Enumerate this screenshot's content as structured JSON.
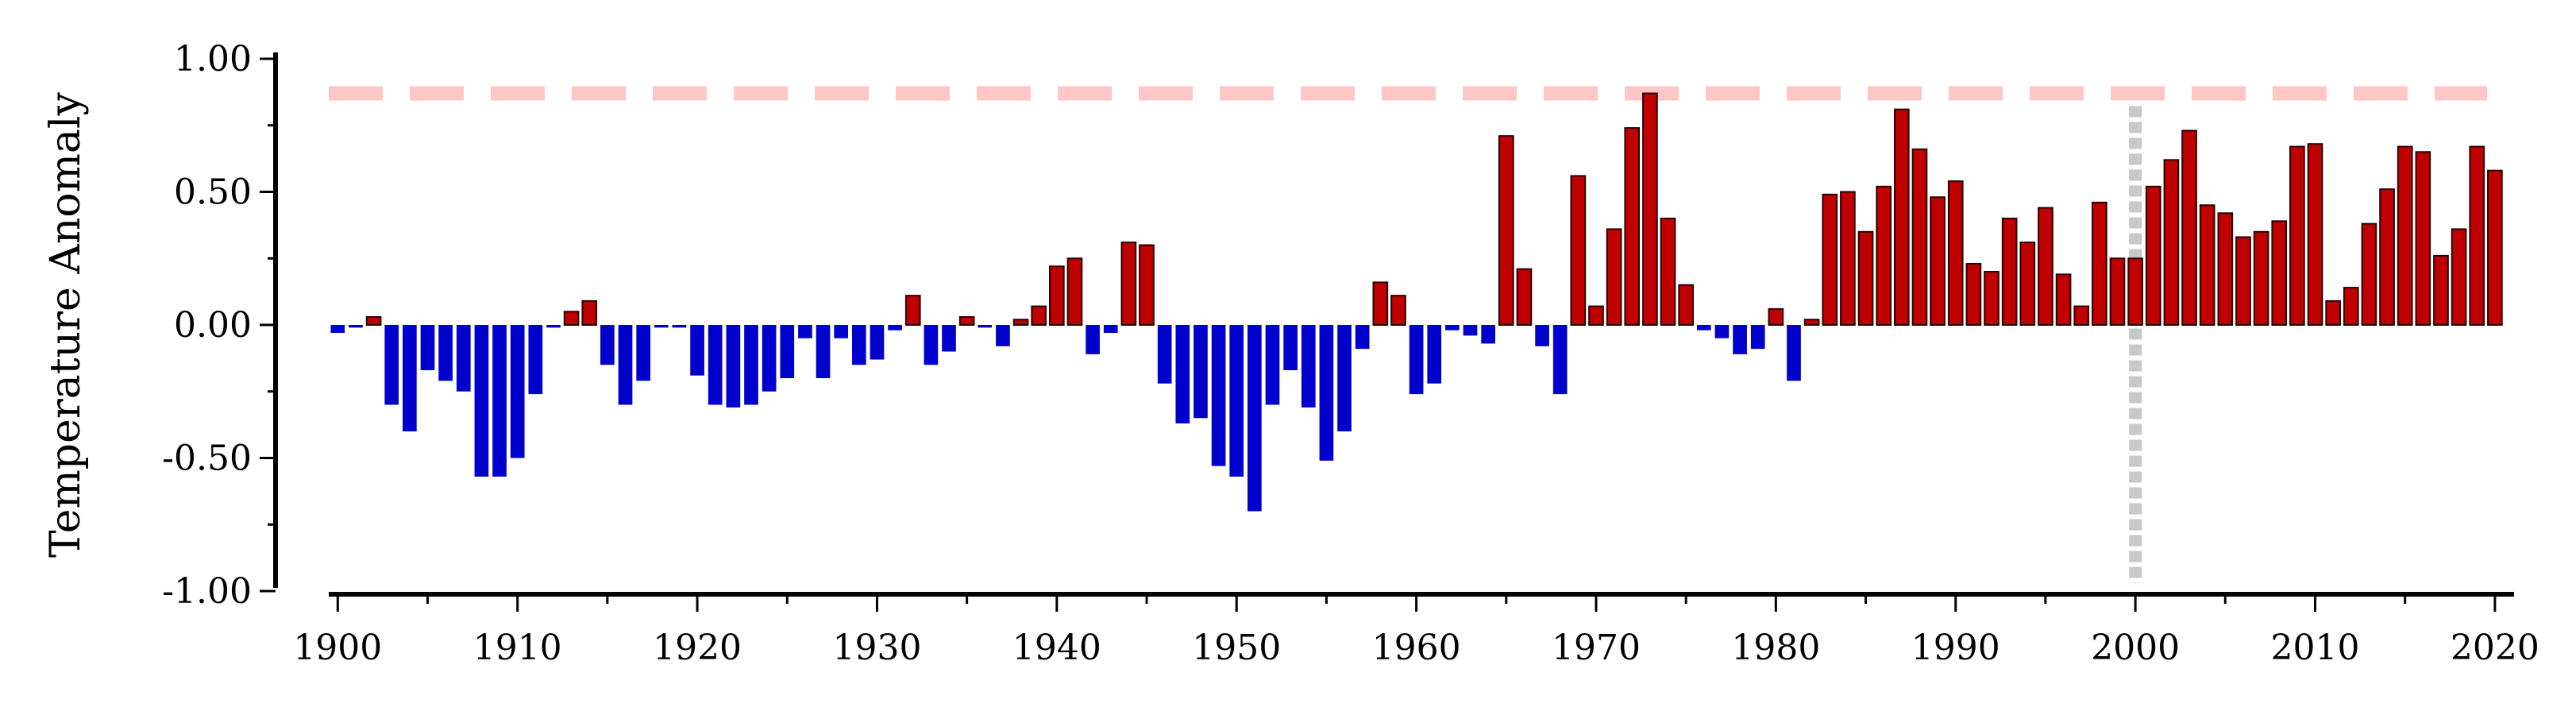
{
  "chart_data": {
    "type": "bar",
    "title": "",
    "xlabel": "",
    "ylabel": "Temperature Anomaly",
    "x": [
      1900,
      1901,
      1902,
      1903,
      1904,
      1905,
      1906,
      1907,
      1908,
      1909,
      1910,
      1911,
      1912,
      1913,
      1914,
      1915,
      1916,
      1917,
      1918,
      1919,
      1920,
      1921,
      1922,
      1923,
      1924,
      1925,
      1926,
      1927,
      1928,
      1929,
      1930,
      1931,
      1932,
      1933,
      1934,
      1935,
      1936,
      1937,
      1938,
      1939,
      1940,
      1941,
      1942,
      1943,
      1944,
      1945,
      1946,
      1947,
      1948,
      1949,
      1950,
      1951,
      1952,
      1953,
      1954,
      1955,
      1956,
      1957,
      1958,
      1959,
      1960,
      1961,
      1962,
      1963,
      1964,
      1965,
      1966,
      1967,
      1968,
      1969,
      1970,
      1971,
      1972,
      1973,
      1974,
      1975,
      1976,
      1977,
      1978,
      1979,
      1980,
      1981,
      1982,
      1983,
      1984,
      1985,
      1986,
      1987,
      1988,
      1989,
      1990,
      1991,
      1992,
      1993,
      1994,
      1995,
      1996,
      1997,
      1998,
      1999,
      2000,
      2001,
      2002,
      2003,
      2004,
      2005,
      2006,
      2007,
      2008,
      2009,
      2010,
      2011,
      2012,
      2013,
      2014,
      2015,
      2016,
      2017,
      2018,
      2019,
      2020
    ],
    "values": [
      -0.03,
      -0.01,
      0.03,
      -0.3,
      -0.4,
      -0.17,
      -0.21,
      -0.25,
      -0.57,
      -0.57,
      -0.5,
      -0.26,
      -0.01,
      0.05,
      0.09,
      -0.15,
      -0.3,
      -0.21,
      -0.01,
      -0.01,
      -0.19,
      -0.3,
      -0.31,
      -0.3,
      -0.25,
      -0.2,
      -0.05,
      -0.2,
      -0.05,
      -0.15,
      -0.13,
      -0.02,
      0.11,
      -0.15,
      -0.1,
      0.03,
      -0.01,
      -0.08,
      0.02,
      0.07,
      0.22,
      0.25,
      -0.11,
      -0.03,
      0.31,
      0.3,
      -0.22,
      -0.37,
      -0.35,
      -0.53,
      -0.57,
      -0.7,
      -0.3,
      -0.17,
      -0.31,
      -0.51,
      -0.4,
      -0.09,
      0.16,
      0.11,
      -0.26,
      -0.22,
      -0.02,
      -0.04,
      -0.07,
      0.71,
      0.21,
      -0.08,
      -0.26,
      0.56,
      0.07,
      0.36,
      0.74,
      0.87,
      0.4,
      0.15,
      -0.02,
      -0.05,
      -0.11,
      -0.09,
      0.06,
      -0.21,
      0.02,
      0.49,
      0.5,
      0.35,
      0.52,
      0.81,
      0.66,
      0.48,
      0.54,
      0.23,
      0.2,
      0.4,
      0.31,
      0.44,
      0.19,
      0.07,
      0.46,
      0.25,
      0.25,
      0.52,
      0.62,
      0.73,
      0.45,
      0.42,
      0.33,
      0.35,
      0.39,
      0.67,
      0.68,
      0.09,
      0.14,
      0.38,
      0.51,
      0.67,
      0.65,
      0.26,
      0.36,
      0.67,
      0.58
    ],
    "ylim": [
      -1.0,
      1.0
    ],
    "xlim": [
      1899.5,
      2020.8
    ],
    "yticks": [
      "-1.00",
      "-0.50",
      "0.00",
      "0.50",
      "1.00"
    ],
    "ytick_values": [
      -1.0,
      -0.5,
      0.0,
      0.5,
      1.0
    ],
    "xticks": [
      "1900",
      "1910",
      "1920",
      "1930",
      "1940",
      "1950",
      "1960",
      "1970",
      "1980",
      "1990",
      "2000",
      "2010",
      "2020"
    ],
    "xtick_values": [
      1900,
      1910,
      1920,
      1930,
      1940,
      1950,
      1960,
      1970,
      1980,
      1990,
      2000,
      2010,
      2020
    ],
    "reference_line_y": 0.87,
    "reference_line_x": 2000,
    "grid": false,
    "legend": "none",
    "colors": {
      "positive": "#c00000",
      "negative": "#0000cc",
      "horizontal_reference": "#ffc6c6",
      "vertical_reference": "#c8c8c8",
      "axis": "#000000"
    }
  }
}
